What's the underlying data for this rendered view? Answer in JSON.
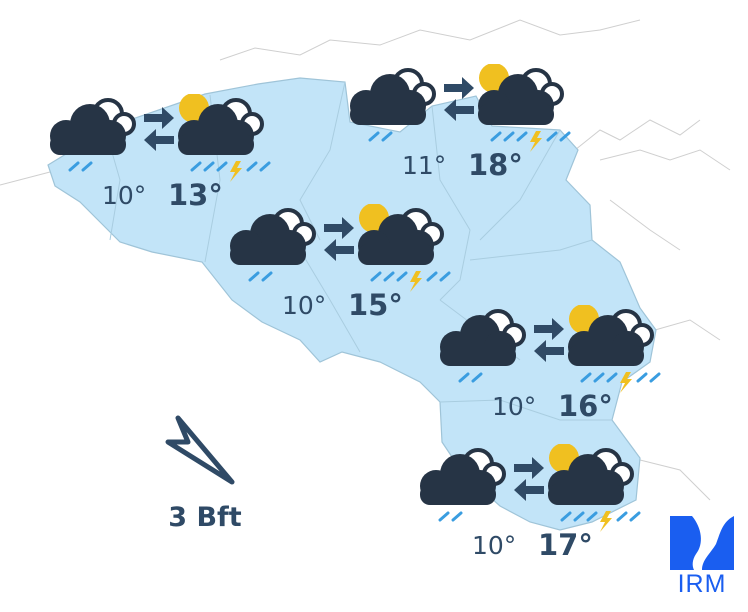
{
  "map": {
    "region": "Belgium",
    "land_color": "#c2e4f8",
    "border_color": "#9fc4d8",
    "neighbour_border_color": "#cfcfcf"
  },
  "colors": {
    "cloud": "#263445",
    "arrow": "#2f4a66",
    "rain": "#3a9de0",
    "sun": "#f0c020",
    "lightning": "#f0c020",
    "text": "#2f4a66"
  },
  "forecasts": [
    {
      "now_icon": "cloud-rain-icon",
      "later_icon": "sun-cloud-rain-thunder-icon",
      "transition_icon": "swap-arrows-icon",
      "min": "10°",
      "max": "13°"
    },
    {
      "now_icon": "cloud-rain-icon",
      "later_icon": "sun-cloud-rain-thunder-icon",
      "transition_icon": "swap-arrows-icon",
      "min": "11°",
      "max": "18°"
    },
    {
      "now_icon": "cloud-rain-icon",
      "later_icon": "sun-cloud-rain-thunder-icon",
      "transition_icon": "swap-arrows-icon",
      "min": "10°",
      "max": "15°"
    },
    {
      "now_icon": "cloud-rain-icon",
      "later_icon": "sun-cloud-rain-thunder-icon",
      "transition_icon": "swap-arrows-icon",
      "min": "10°",
      "max": "16°"
    },
    {
      "now_icon": "cloud-rain-icon",
      "later_icon": "sun-cloud-rain-thunder-icon",
      "transition_icon": "swap-arrows-icon",
      "min": "10°",
      "max": "17°"
    }
  ],
  "wind": {
    "icon": "wind-direction-arrow-icon",
    "direction": "NW",
    "label": "3 Bft"
  },
  "logo": {
    "text": "IRM",
    "color": "#1a5ef0"
  }
}
